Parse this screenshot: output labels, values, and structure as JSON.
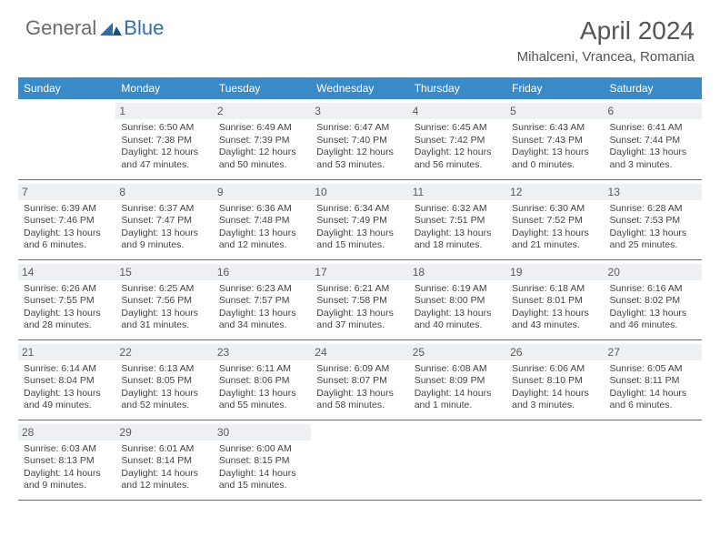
{
  "brand": {
    "part1": "General",
    "part2": "Blue"
  },
  "title": "April 2024",
  "location": "Mihalceni, Vrancea, Romania",
  "colors": {
    "header_bg": "#3a8ac8",
    "header_text": "#ffffff",
    "daynum_bg": "#eef1f3",
    "rule": "#3a7aa8",
    "title_color": "#555555",
    "body_text": "#444444",
    "logo_gray": "#6b6b6b",
    "logo_blue": "#2f6fa8"
  },
  "typography": {
    "title_fontsize": 28,
    "location_fontsize": 15,
    "dow_fontsize": 12,
    "daynum_fontsize": 12,
    "cell_fontsize": 10.5,
    "logo_fontsize": 22
  },
  "days_of_week": [
    "Sunday",
    "Monday",
    "Tuesday",
    "Wednesday",
    "Thursday",
    "Friday",
    "Saturday"
  ],
  "weeks": [
    [
      null,
      {
        "n": "1",
        "sr": "Sunrise: 6:50 AM",
        "ss": "Sunset: 7:38 PM",
        "dl": "Daylight: 12 hours and 47 minutes."
      },
      {
        "n": "2",
        "sr": "Sunrise: 6:49 AM",
        "ss": "Sunset: 7:39 PM",
        "dl": "Daylight: 12 hours and 50 minutes."
      },
      {
        "n": "3",
        "sr": "Sunrise: 6:47 AM",
        "ss": "Sunset: 7:40 PM",
        "dl": "Daylight: 12 hours and 53 minutes."
      },
      {
        "n": "4",
        "sr": "Sunrise: 6:45 AM",
        "ss": "Sunset: 7:42 PM",
        "dl": "Daylight: 12 hours and 56 minutes."
      },
      {
        "n": "5",
        "sr": "Sunrise: 6:43 AM",
        "ss": "Sunset: 7:43 PM",
        "dl": "Daylight: 13 hours and 0 minutes."
      },
      {
        "n": "6",
        "sr": "Sunrise: 6:41 AM",
        "ss": "Sunset: 7:44 PM",
        "dl": "Daylight: 13 hours and 3 minutes."
      }
    ],
    [
      {
        "n": "7",
        "sr": "Sunrise: 6:39 AM",
        "ss": "Sunset: 7:46 PM",
        "dl": "Daylight: 13 hours and 6 minutes."
      },
      {
        "n": "8",
        "sr": "Sunrise: 6:37 AM",
        "ss": "Sunset: 7:47 PM",
        "dl": "Daylight: 13 hours and 9 minutes."
      },
      {
        "n": "9",
        "sr": "Sunrise: 6:36 AM",
        "ss": "Sunset: 7:48 PM",
        "dl": "Daylight: 13 hours and 12 minutes."
      },
      {
        "n": "10",
        "sr": "Sunrise: 6:34 AM",
        "ss": "Sunset: 7:49 PM",
        "dl": "Daylight: 13 hours and 15 minutes."
      },
      {
        "n": "11",
        "sr": "Sunrise: 6:32 AM",
        "ss": "Sunset: 7:51 PM",
        "dl": "Daylight: 13 hours and 18 minutes."
      },
      {
        "n": "12",
        "sr": "Sunrise: 6:30 AM",
        "ss": "Sunset: 7:52 PM",
        "dl": "Daylight: 13 hours and 21 minutes."
      },
      {
        "n": "13",
        "sr": "Sunrise: 6:28 AM",
        "ss": "Sunset: 7:53 PM",
        "dl": "Daylight: 13 hours and 25 minutes."
      }
    ],
    [
      {
        "n": "14",
        "sr": "Sunrise: 6:26 AM",
        "ss": "Sunset: 7:55 PM",
        "dl": "Daylight: 13 hours and 28 minutes."
      },
      {
        "n": "15",
        "sr": "Sunrise: 6:25 AM",
        "ss": "Sunset: 7:56 PM",
        "dl": "Daylight: 13 hours and 31 minutes."
      },
      {
        "n": "16",
        "sr": "Sunrise: 6:23 AM",
        "ss": "Sunset: 7:57 PM",
        "dl": "Daylight: 13 hours and 34 minutes."
      },
      {
        "n": "17",
        "sr": "Sunrise: 6:21 AM",
        "ss": "Sunset: 7:58 PM",
        "dl": "Daylight: 13 hours and 37 minutes."
      },
      {
        "n": "18",
        "sr": "Sunrise: 6:19 AM",
        "ss": "Sunset: 8:00 PM",
        "dl": "Daylight: 13 hours and 40 minutes."
      },
      {
        "n": "19",
        "sr": "Sunrise: 6:18 AM",
        "ss": "Sunset: 8:01 PM",
        "dl": "Daylight: 13 hours and 43 minutes."
      },
      {
        "n": "20",
        "sr": "Sunrise: 6:16 AM",
        "ss": "Sunset: 8:02 PM",
        "dl": "Daylight: 13 hours and 46 minutes."
      }
    ],
    [
      {
        "n": "21",
        "sr": "Sunrise: 6:14 AM",
        "ss": "Sunset: 8:04 PM",
        "dl": "Daylight: 13 hours and 49 minutes."
      },
      {
        "n": "22",
        "sr": "Sunrise: 6:13 AM",
        "ss": "Sunset: 8:05 PM",
        "dl": "Daylight: 13 hours and 52 minutes."
      },
      {
        "n": "23",
        "sr": "Sunrise: 6:11 AM",
        "ss": "Sunset: 8:06 PM",
        "dl": "Daylight: 13 hours and 55 minutes."
      },
      {
        "n": "24",
        "sr": "Sunrise: 6:09 AM",
        "ss": "Sunset: 8:07 PM",
        "dl": "Daylight: 13 hours and 58 minutes."
      },
      {
        "n": "25",
        "sr": "Sunrise: 6:08 AM",
        "ss": "Sunset: 8:09 PM",
        "dl": "Daylight: 14 hours and 1 minute."
      },
      {
        "n": "26",
        "sr": "Sunrise: 6:06 AM",
        "ss": "Sunset: 8:10 PM",
        "dl": "Daylight: 14 hours and 3 minutes."
      },
      {
        "n": "27",
        "sr": "Sunrise: 6:05 AM",
        "ss": "Sunset: 8:11 PM",
        "dl": "Daylight: 14 hours and 6 minutes."
      }
    ],
    [
      {
        "n": "28",
        "sr": "Sunrise: 6:03 AM",
        "ss": "Sunset: 8:13 PM",
        "dl": "Daylight: 14 hours and 9 minutes."
      },
      {
        "n": "29",
        "sr": "Sunrise: 6:01 AM",
        "ss": "Sunset: 8:14 PM",
        "dl": "Daylight: 14 hours and 12 minutes."
      },
      {
        "n": "30",
        "sr": "Sunrise: 6:00 AM",
        "ss": "Sunset: 8:15 PM",
        "dl": "Daylight: 14 hours and 15 minutes."
      },
      null,
      null,
      null,
      null
    ]
  ]
}
